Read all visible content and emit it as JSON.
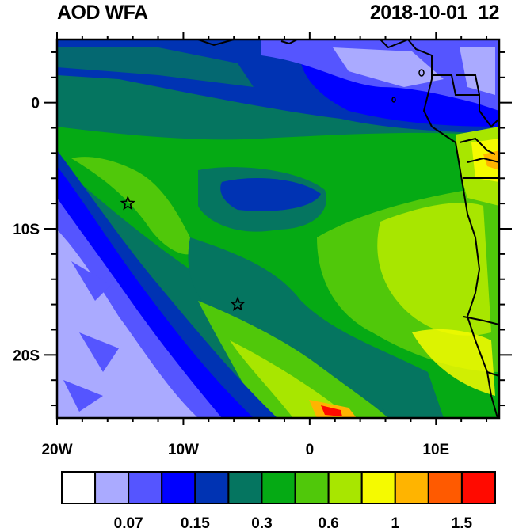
{
  "title_left": "AOD WFA",
  "title_right": "2018-10-01_12",
  "map": {
    "lon_range": [
      -20,
      15
    ],
    "lat_range": [
      -25,
      5
    ],
    "x_tick_labels": [
      {
        "lon": -20,
        "label": "20W"
      },
      {
        "lon": -10,
        "label": "10W"
      },
      {
        "lon": 0,
        "label": "0"
      },
      {
        "lon": 10,
        "label": "10E"
      }
    ],
    "y_tick_labels": [
      {
        "lat": 0,
        "label": "0"
      },
      {
        "lat": -10,
        "label": "10S"
      },
      {
        "lat": -20,
        "label": "20S"
      }
    ],
    "star_markers": [
      {
        "lon": -14.4,
        "lat": -8
      },
      {
        "lon": -5.7,
        "lat": -16
      }
    ],
    "icon": "star-marker-icon"
  },
  "colorbar": {
    "colors": [
      "#ffffff",
      "#aaaaff",
      "#5555ff",
      "#0000ff",
      "#0033b3",
      "#057560",
      "#05aa14",
      "#50c80a",
      "#a8e600",
      "#f5fa00",
      "#ffb400",
      "#ff5a00",
      "#ff0a00"
    ],
    "labels": [
      "0.07",
      "0.15",
      "0.3",
      "0.6",
      "1",
      "1.5"
    ]
  }
}
